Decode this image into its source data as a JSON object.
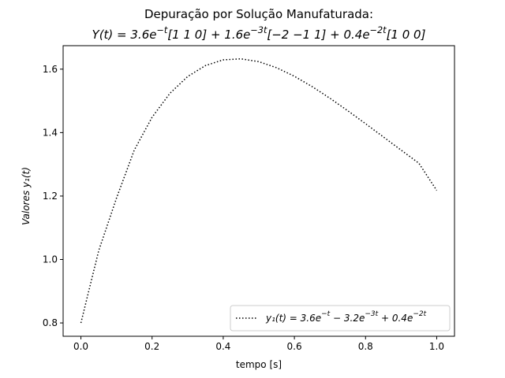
{
  "chart_data": {
    "type": "line",
    "title": "Depuração por Solução Manufaturada:",
    "subtitle": "Y(t) = 3.6e^{−t}[1  1  0] + 1.6e^{−3t}[−2  −1  1] + 0.4e^{−2t}[1  0  0]",
    "xlabel": "tempo [s]",
    "ylabel": "Valores   y₁(t)",
    "xlim": [
      -0.05,
      1.05
    ],
    "ylim": [
      0.758,
      1.674
    ],
    "xticks": [
      0.0,
      0.2,
      0.4,
      0.6,
      0.8,
      1.0
    ],
    "xtick_labels": [
      "0.0",
      "0.2",
      "0.4",
      "0.6",
      "0.8",
      "1.0"
    ],
    "yticks": [
      0.8,
      1.0,
      1.2,
      1.4,
      1.6
    ],
    "ytick_labels": [
      "0.8",
      "1.0",
      "1.2",
      "1.4",
      "1.6"
    ],
    "grid": false,
    "legend_position": "lower right",
    "series": [
      {
        "name": "y₁(t) = 3.6e^{−t} − 3.2e^{−3t} + 0.4e^{−2t}",
        "line_style": "dotted",
        "color": "#000000",
        "x": [
          0.0,
          0.05,
          0.1,
          0.15,
          0.2,
          0.25,
          0.3,
          0.35,
          0.4,
          0.45,
          0.5,
          0.55,
          0.6,
          0.65,
          0.7,
          0.75,
          0.8,
          0.85,
          0.9,
          0.95,
          1.0
        ],
        "y": [
          0.8,
          1.0278,
          1.1935,
          1.3449,
          1.4484,
          1.5236,
          1.5768,
          1.6113,
          1.6293,
          1.6326,
          1.6236,
          1.6045,
          1.5775,
          1.5449,
          1.5082,
          1.4689,
          1.4281,
          1.3864,
          1.3447,
          1.3033,
          1.2177
        ]
      }
    ]
  }
}
